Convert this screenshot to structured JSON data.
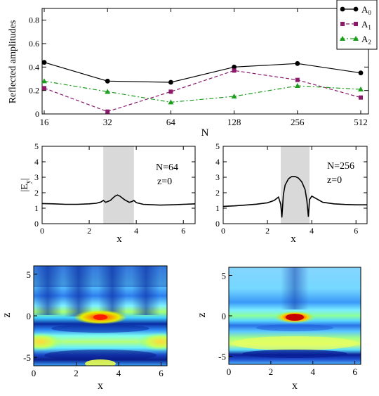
{
  "chart_data": [
    {
      "type": "line",
      "title": "",
      "xlabel": "N",
      "ylabel": "Reflected amplitudes",
      "x_scale": "log2",
      "categories": [
        "16",
        "32",
        "64",
        "128",
        "256",
        "512"
      ],
      "ylim": [
        0,
        0.9
      ],
      "yticks": [
        "0",
        "0.2",
        "0.4",
        "0.6",
        "0.8"
      ],
      "legend_position": "top-right",
      "series": [
        {
          "name": "A",
          "sub": "0",
          "color": "#000000",
          "dash": "solid",
          "marker": "circle",
          "values": [
            0.44,
            0.28,
            0.27,
            0.4,
            0.43,
            0.35
          ]
        },
        {
          "name": "A",
          "sub": "1",
          "color": "#8b1a6b",
          "dash": "dash",
          "marker": "square",
          "values": [
            0.22,
            0.02,
            0.19,
            0.37,
            0.29,
            0.14
          ]
        },
        {
          "name": "A",
          "sub": "2",
          "color": "#1e9e1e",
          "dash": "dashdot",
          "marker": "triangle",
          "values": [
            0.28,
            0.19,
            0.1,
            0.15,
            0.24,
            0.21
          ]
        }
      ]
    },
    {
      "type": "line",
      "xlabel": "x",
      "ylabel": "|E y |",
      "ylabel_parts": [
        "|E",
        "y",
        "|"
      ],
      "annotations": [
        "N=64",
        "z=0"
      ],
      "xlim": [
        0,
        6.5
      ],
      "ylim": [
        0,
        5
      ],
      "xticks": [
        "0",
        "2",
        "4",
        "6"
      ],
      "yticks": [
        "0",
        "1",
        "2",
        "3",
        "4",
        "5"
      ],
      "shaded_region": [
        2.6,
        3.9
      ],
      "series": [
        {
          "values_x": [
            0,
            0.5,
            1,
            1.5,
            2,
            2.3,
            2.5,
            2.6,
            2.7,
            2.9,
            3.0,
            3.1,
            3.2,
            3.3,
            3.5,
            3.7,
            3.8,
            3.9,
            4.0,
            4.3,
            5.0,
            5.5,
            6.0,
            6.5
          ],
          "values_y": [
            1.3,
            1.28,
            1.25,
            1.25,
            1.28,
            1.32,
            1.4,
            1.5,
            1.38,
            1.5,
            1.65,
            1.78,
            1.85,
            1.78,
            1.55,
            1.38,
            1.42,
            1.5,
            1.36,
            1.25,
            1.2,
            1.22,
            1.25,
            1.28
          ]
        }
      ]
    },
    {
      "type": "line",
      "xlabel": "x",
      "annotations": [
        "N=256",
        "z=0"
      ],
      "xlim": [
        0,
        6.5
      ],
      "ylim": [
        0,
        5
      ],
      "xticks": [
        "0",
        "2",
        "4",
        "6"
      ],
      "yticks": [
        "0",
        "1",
        "2",
        "3",
        "4",
        "5"
      ],
      "shaded_region": [
        2.6,
        3.9
      ],
      "series": [
        {
          "values_x": [
            0,
            0.5,
            1,
            1.5,
            2,
            2.3,
            2.5,
            2.6,
            2.65,
            2.72,
            2.8,
            2.95,
            3.1,
            3.25,
            3.4,
            3.55,
            3.7,
            3.78,
            3.85,
            3.9,
            4.0,
            4.5,
            5.0,
            5.5,
            6.0,
            6.5
          ],
          "values_y": [
            1.12,
            1.15,
            1.2,
            1.26,
            1.35,
            1.5,
            1.72,
            1.25,
            0.4,
            1.9,
            2.5,
            2.9,
            3.05,
            3.05,
            2.95,
            2.7,
            2.2,
            1.5,
            0.45,
            1.55,
            1.78,
            1.38,
            1.28,
            1.24,
            1.22,
            1.22
          ]
        }
      ]
    },
    {
      "type": "heatmap",
      "xlabel": "x",
      "ylabel": "z",
      "xticks": [
        "0",
        "2",
        "4",
        "6"
      ],
      "yticks": [
        "5",
        "0",
        "-5"
      ],
      "xlim": [
        0,
        6.28
      ],
      "ylim": [
        -6,
        6
      ],
      "colormap": "jet"
    },
    {
      "type": "heatmap",
      "xlabel": "x",
      "ylabel": "z",
      "xticks": [
        "0",
        "2",
        "4",
        "6"
      ],
      "yticks": [
        "5",
        "0",
        "-5"
      ],
      "xlim": [
        0,
        6.28
      ],
      "ylim": [
        -6,
        6
      ],
      "colormap": "jet"
    }
  ]
}
